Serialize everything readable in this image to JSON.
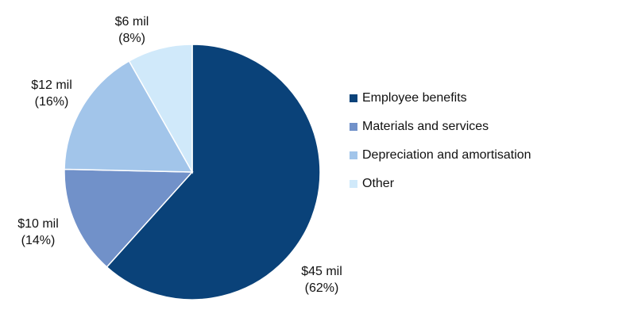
{
  "chart_data": {
    "type": "pie",
    "categories": [
      "Employee benefits",
      "Materials and services",
      "Depreciation and amortisation",
      "Other"
    ],
    "values": [
      45,
      10,
      12,
      6
    ],
    "value_labels": [
      "$45 mil",
      "$10 mil",
      "$12 mil",
      "$6 mil"
    ],
    "percent_labels": [
      "(62%)",
      "(14%)",
      "(16%)",
      "(8%)"
    ],
    "colors": [
      "#0a4279",
      "#7191c9",
      "#a2c5ea",
      "#d0e9fa"
    ],
    "legend": "right"
  }
}
